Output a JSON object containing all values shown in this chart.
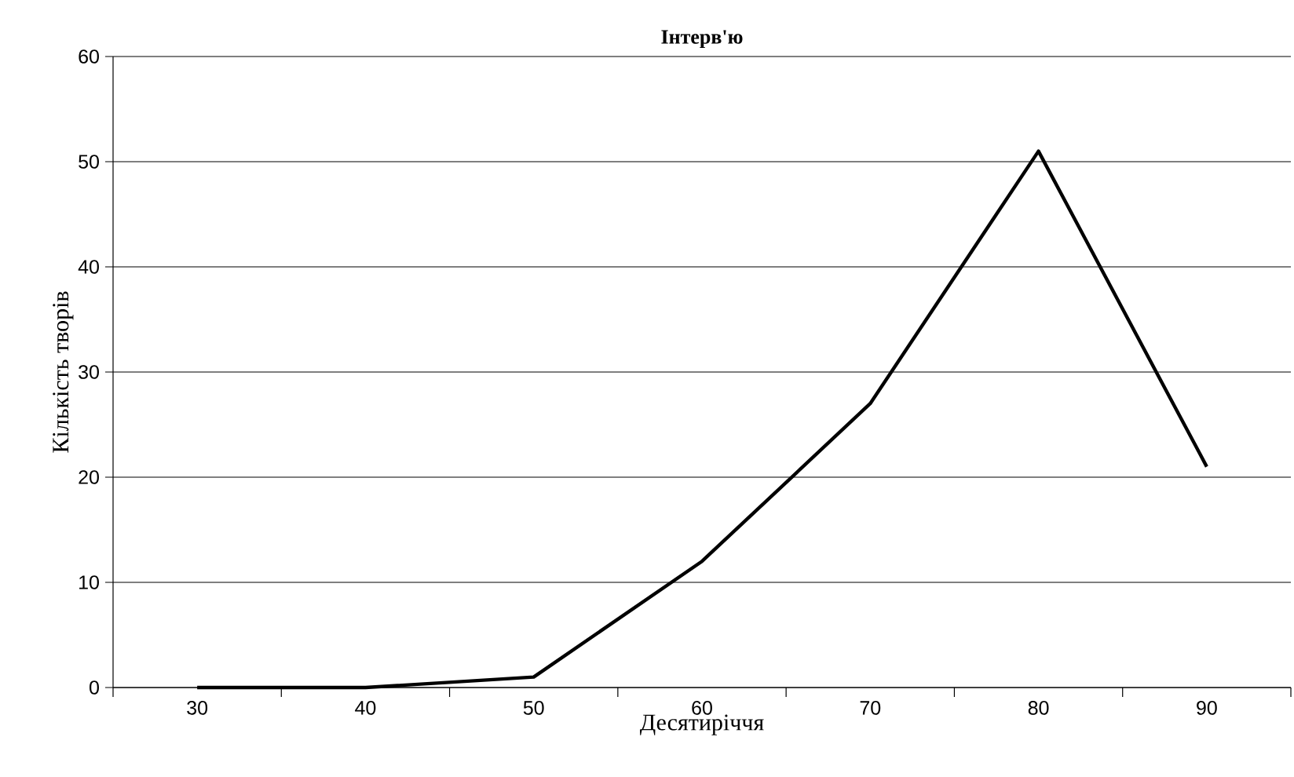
{
  "chart_data": {
    "type": "line",
    "title": "Інтерв'ю",
    "xlabel": "Десятиріччя",
    "ylabel": "Кількість творів",
    "categories": [
      "30",
      "40",
      "50",
      "60",
      "70",
      "80",
      "90"
    ],
    "series": [
      {
        "color": "#000000",
        "values": [
          0,
          0,
          1,
          12,
          27,
          51,
          21
        ]
      }
    ],
    "ylim": [
      0,
      60
    ],
    "yticks": [
      0,
      10,
      20,
      30,
      40,
      50,
      60
    ],
    "grid": "y"
  }
}
